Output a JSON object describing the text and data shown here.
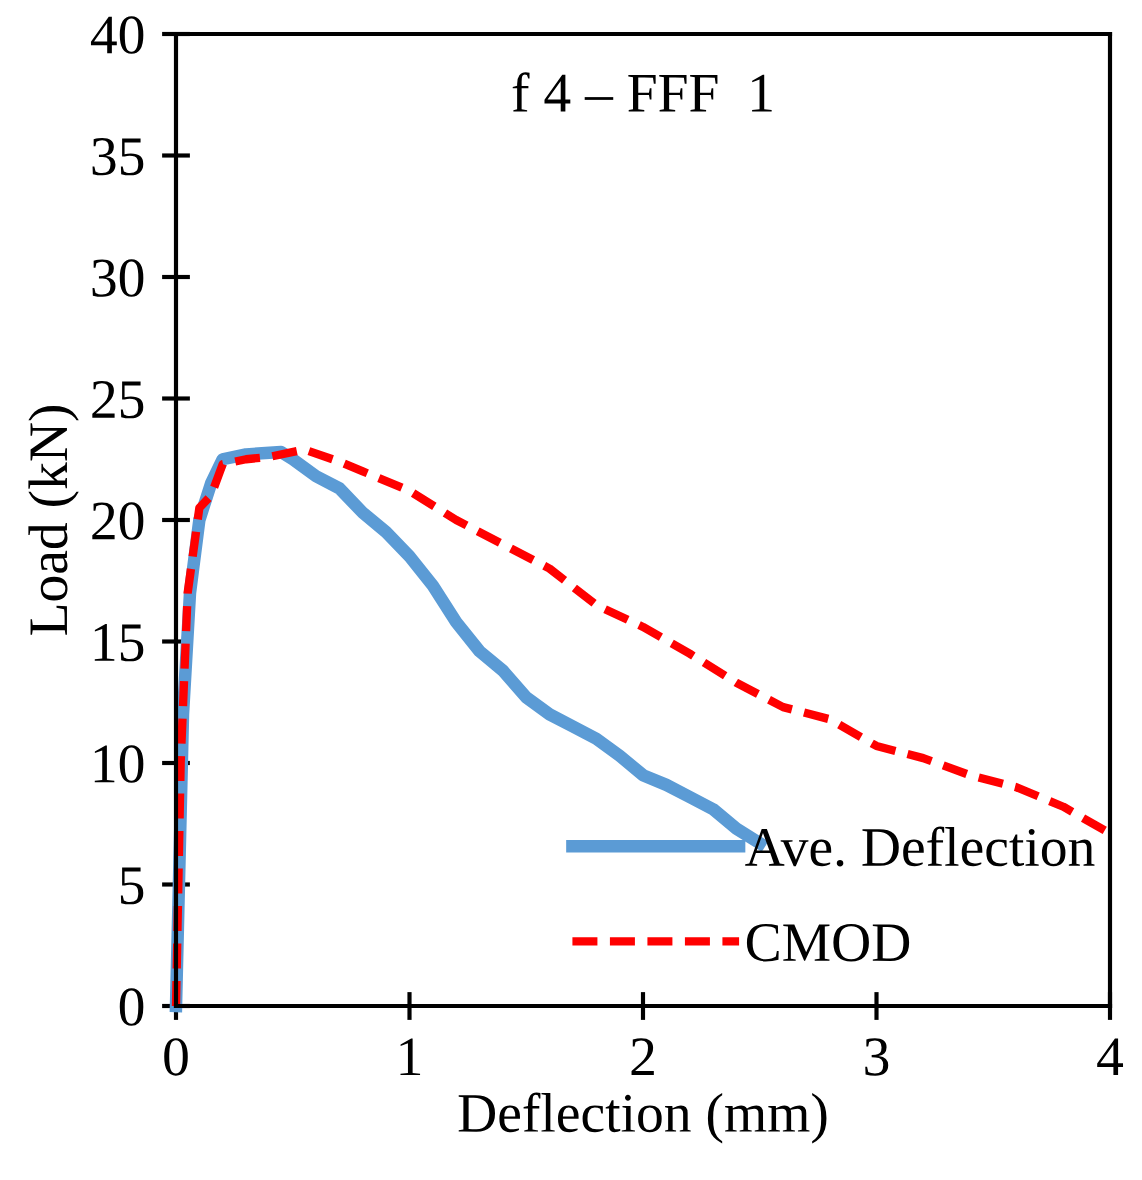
{
  "chart_data": {
    "type": "line",
    "xlabel": "Deflection (mm)",
    "ylabel": "Load (kN)",
    "annotations": [
      "f 4 – FFF  1"
    ],
    "xlim": [
      0,
      4
    ],
    "xticks": [
      0,
      1,
      2,
      3,
      4
    ],
    "ylim": [
      0,
      40
    ],
    "yticks": [
      0,
      5,
      10,
      15,
      20,
      25,
      30,
      35,
      40
    ],
    "grid": false,
    "legend": "bottom right",
    "series": [
      {
        "name": "Ave. Deflection",
        "color": "#5b9bd5",
        "line_style": "solid",
        "x": [
          0,
          0.03,
          0.06,
          0.1,
          0.15,
          0.2,
          0.3,
          0.45,
          0.5,
          0.6,
          0.7,
          0.8,
          0.9,
          1.0,
          1.1,
          1.2,
          1.3,
          1.4,
          1.5,
          1.6,
          1.7,
          1.8,
          1.9,
          2.0,
          2.1,
          2.2,
          2.3,
          2.4,
          2.5
        ],
        "values": [
          0,
          12,
          17,
          20,
          21.5,
          22.5,
          22.7,
          22.8,
          22.5,
          21.8,
          21.3,
          20.3,
          19.5,
          18.5,
          17.3,
          15.8,
          14.6,
          13.8,
          12.7,
          12,
          11.5,
          11,
          10.3,
          9.5,
          9.1,
          8.6,
          8.1,
          7.3,
          6.7
        ]
      },
      {
        "name": "CMOD",
        "color": "#ff0000",
        "line_style": "dashed",
        "x": [
          0,
          0.02,
          0.05,
          0.1,
          0.15,
          0.2,
          0.3,
          0.4,
          0.55,
          0.7,
          0.8,
          1.0,
          1.2,
          1.4,
          1.6,
          1.8,
          2.0,
          2.2,
          2.4,
          2.6,
          2.8,
          3.0,
          3.2,
          3.4,
          3.6,
          3.8,
          4.0
        ],
        "values": [
          0,
          10,
          17,
          20.5,
          21,
          22.3,
          22.5,
          22.6,
          22.9,
          22.4,
          22,
          21.2,
          20,
          19,
          18,
          16.5,
          15.6,
          14.5,
          13.3,
          12.3,
          11.8,
          10.7,
          10.2,
          9.5,
          9.0,
          8.2,
          7.1
        ]
      }
    ]
  }
}
